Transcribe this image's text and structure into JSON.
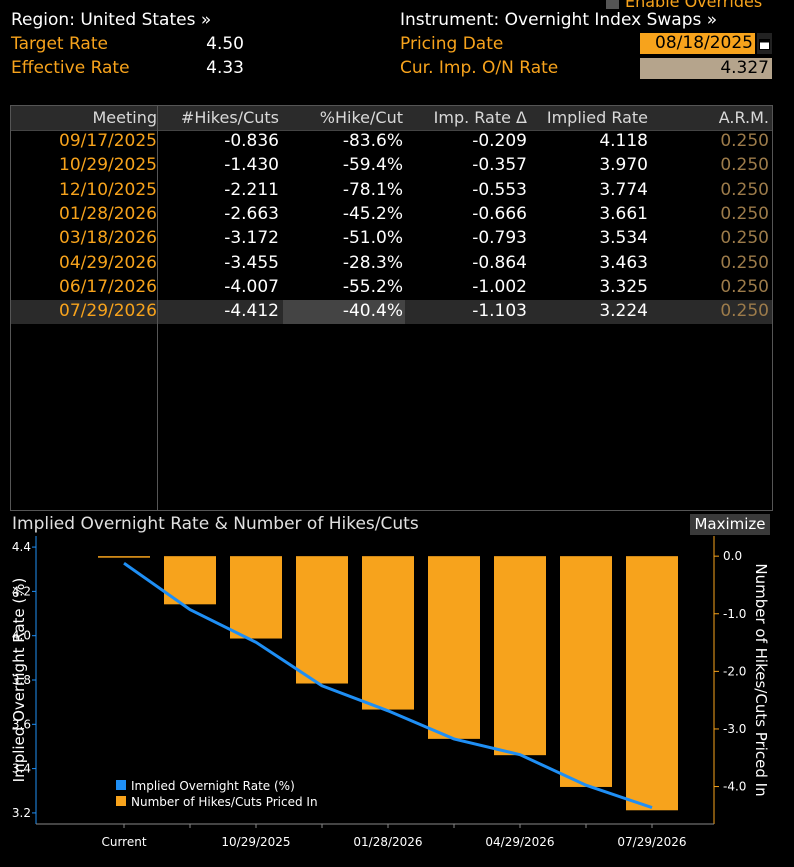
{
  "header": {
    "region_label": "Region: United States »",
    "instrument_label": "Instrument: Overnight Index Swaps »",
    "enable_overrides": "Enable Overrides",
    "target_rate_label": "Target Rate",
    "target_rate_value": "4.50",
    "effective_rate_label": "Effective Rate",
    "effective_rate_value": "4.33",
    "pricing_date_label": "Pricing Date",
    "pricing_date_value": "08/18/2025",
    "cur_imp_label": "Cur. Imp. O/N Rate",
    "cur_imp_value": "4.327"
  },
  "table": {
    "columns": [
      "Meeting",
      "#Hikes/Cuts",
      "%Hike/Cut",
      "Imp. Rate Δ",
      "Implied Rate",
      "A.R.M."
    ],
    "rows": [
      [
        "09/17/2025",
        "-0.836",
        "-83.6%",
        "-0.209",
        "4.118",
        "0.250"
      ],
      [
        "10/29/2025",
        "-1.430",
        "-59.4%",
        "-0.357",
        "3.970",
        "0.250"
      ],
      [
        "12/10/2025",
        "-2.211",
        "-78.1%",
        "-0.553",
        "3.774",
        "0.250"
      ],
      [
        "01/28/2026",
        "-2.663",
        "-45.2%",
        "-0.666",
        "3.661",
        "0.250"
      ],
      [
        "03/18/2026",
        "-3.172",
        "-51.0%",
        "-0.793",
        "3.534",
        "0.250"
      ],
      [
        "04/29/2026",
        "-3.455",
        "-28.3%",
        "-0.864",
        "3.463",
        "0.250"
      ],
      [
        "06/17/2026",
        "-4.007",
        "-55.2%",
        "-1.002",
        "3.325",
        "0.250"
      ],
      [
        "07/29/2026",
        "-4.412",
        "-40.4%",
        "-1.103",
        "3.224",
        "0.250"
      ]
    ],
    "selected_row": 7
  },
  "chart": {
    "title": "Implied Overnight Rate & Number of Hikes/Cuts",
    "maximize_label": "Maximize"
  },
  "chart_data": {
    "type": "bar",
    "categories": [
      "Current",
      "09/17/2025",
      "10/29/2025",
      "12/10/2025",
      "01/28/2026",
      "03/18/2026",
      "04/29/2026",
      "06/17/2026",
      "07/29/2026"
    ],
    "x_tick_labels": [
      "Current",
      "10/29/2025",
      "01/28/2026",
      "04/29/2026",
      "07/29/2026"
    ],
    "series": [
      {
        "name": "Number of Hikes/Cuts Priced In",
        "axis": "right",
        "type": "bar",
        "color": "#f7a31c",
        "values": [
          0,
          -0.836,
          -1.43,
          -2.211,
          -2.663,
          -3.172,
          -3.455,
          -4.007,
          -4.412
        ]
      },
      {
        "name": "Implied Overnight Rate (%)",
        "axis": "left",
        "type": "line",
        "color": "#1f8ff5",
        "values": [
          4.327,
          4.118,
          3.97,
          3.774,
          3.661,
          3.534,
          3.463,
          3.325,
          3.224
        ]
      }
    ],
    "ylabel": "Implied Overnight Rate (%)",
    "y2label": "Number of Hikes/Cuts Priced In",
    "ylim": [
      3.15,
      4.45
    ],
    "yticks": [
      3.2,
      3.4,
      3.6,
      3.8,
      4.0,
      4.2,
      4.4
    ],
    "ytick_labels": [
      "3.2",
      "3.4",
      "3.6",
      "3.8",
      "4.0",
      "4.2",
      "4.4"
    ],
    "y2lim": [
      -4.65,
      0.35
    ],
    "y2ticks": [
      0,
      -1,
      -2,
      -3,
      -4
    ],
    "y2tick_labels": [
      "0.0",
      "-1.0",
      "-2.0",
      "-3.0",
      "-4.0"
    ],
    "legend_position": "bottom-left",
    "colors": {
      "accent": "#f7a31c",
      "line": "#1f8ff5"
    }
  }
}
